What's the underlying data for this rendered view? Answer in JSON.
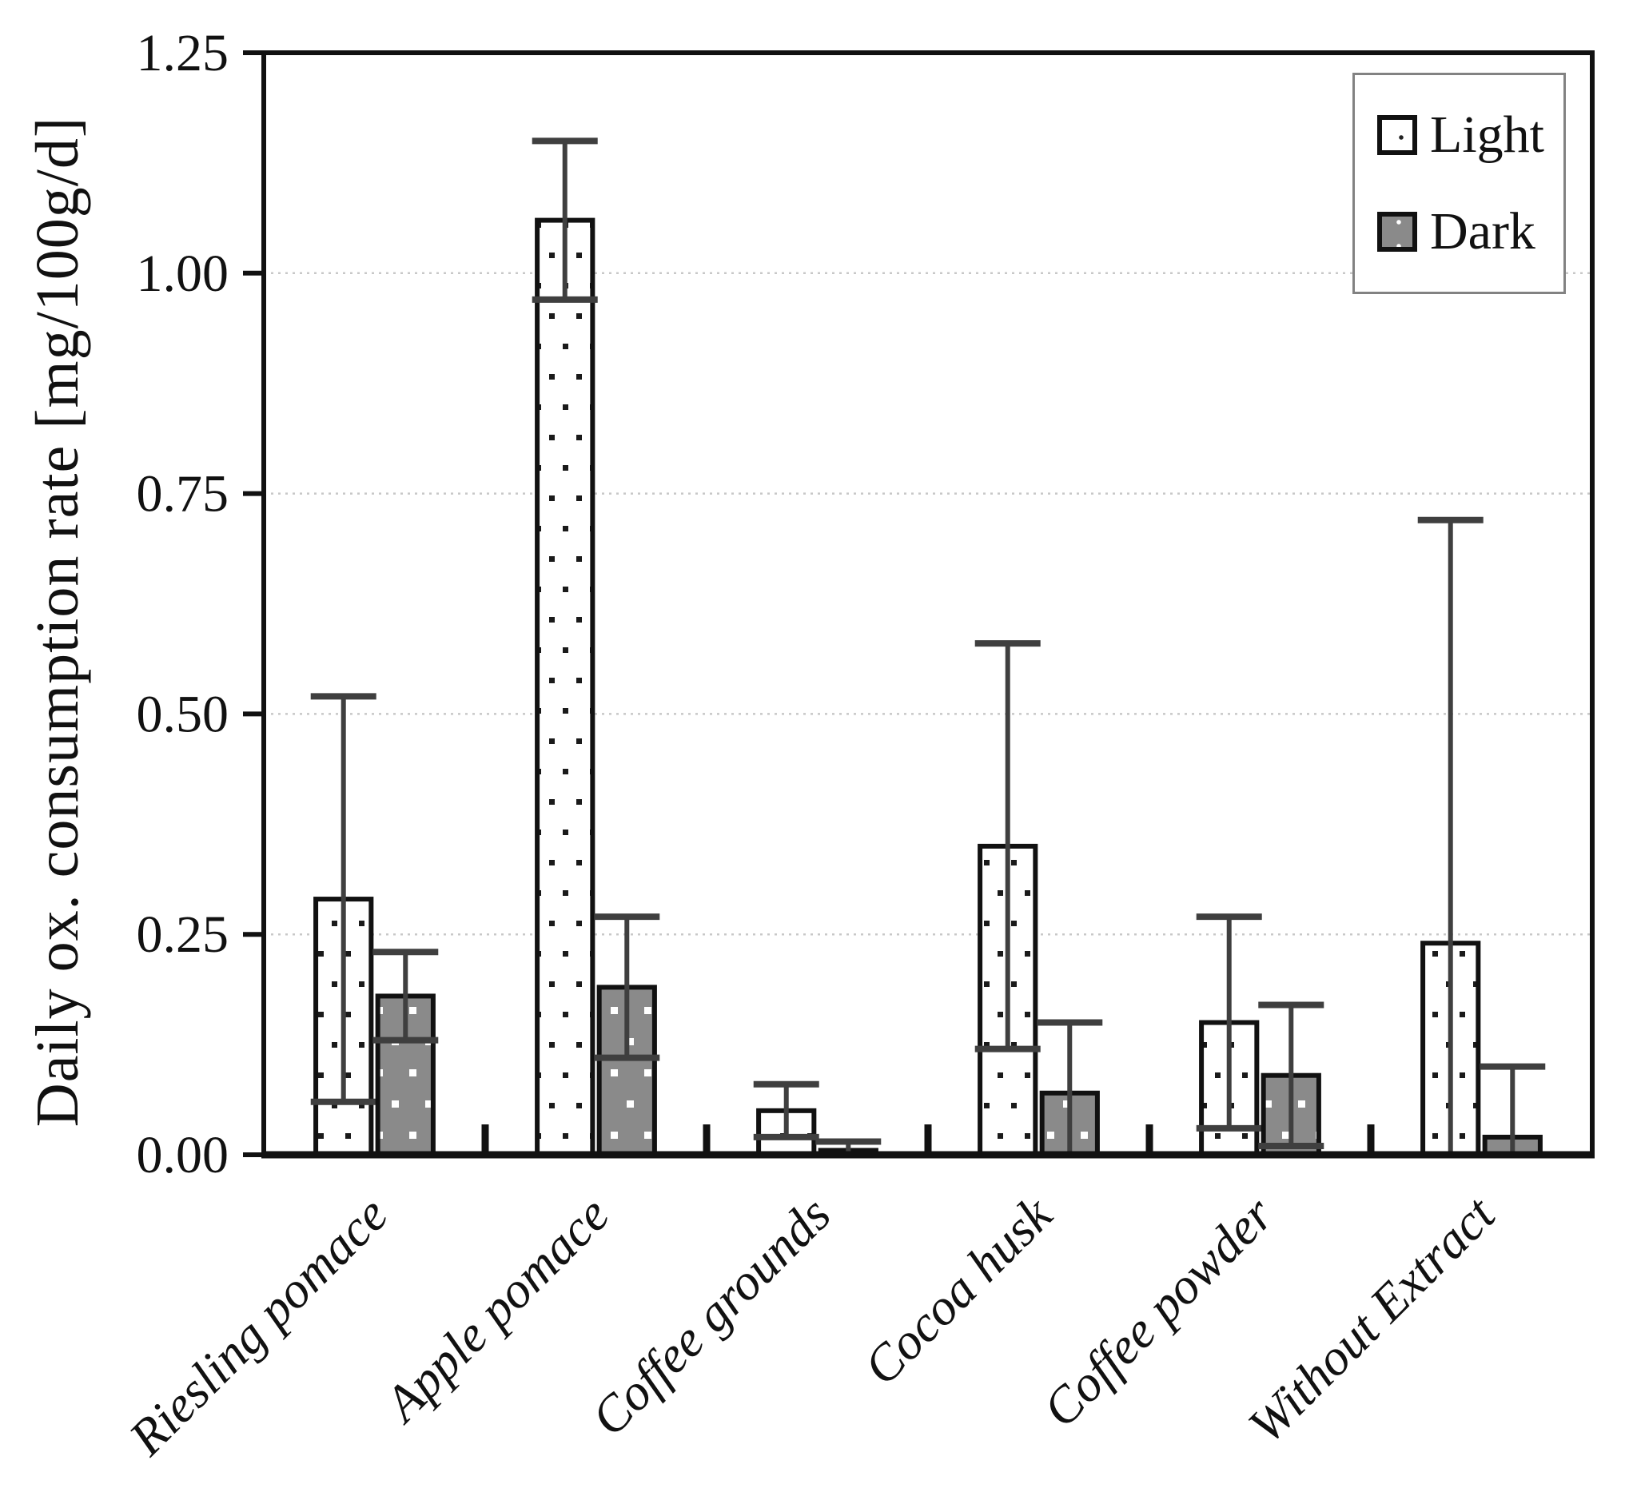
{
  "chart_data": {
    "type": "bar",
    "title": "",
    "xlabel": "",
    "ylabel": "Daily ox. consumption rate [mg/100g/d]",
    "ylim": [
      0,
      1.25
    ],
    "yticks": [
      0,
      0.25,
      0.5,
      0.75,
      1.0,
      1.25
    ],
    "ytick_labels": [
      "0.00",
      "0.25",
      "0.50",
      "0.75",
      "1.00",
      "1.25"
    ],
    "grid": "horizontal-dotted",
    "legend_position": "top-right",
    "categories": [
      "Riesling pomace",
      "Apple pomace",
      "Coffee grounds",
      "Cocoa husk",
      "Coffee powder",
      "Without Extract"
    ],
    "series": [
      {
        "name": "Light",
        "style": "white-with-black-dots",
        "values": [
          0.29,
          1.06,
          0.05,
          0.35,
          0.15,
          0.24
        ],
        "error_low": [
          0.06,
          0.97,
          0.02,
          0.12,
          0.03,
          0.0
        ],
        "error_high": [
          0.52,
          1.15,
          0.08,
          0.58,
          0.27,
          0.72
        ]
      },
      {
        "name": "Dark",
        "style": "gray-with-white-dots",
        "values": [
          0.18,
          0.19,
          0.005,
          0.07,
          0.09,
          0.02
        ],
        "error_low": [
          0.13,
          0.11,
          0.0,
          0.0,
          0.01,
          0.0
        ],
        "error_high": [
          0.23,
          0.27,
          0.015,
          0.15,
          0.17,
          0.1
        ]
      }
    ],
    "colors": {
      "light_fill": "#ffffff",
      "light_dot": "#1a1a1a",
      "dark_fill": "#8a8a8a",
      "dark_dot": "#ffffff",
      "bar_border": "#111111",
      "error_bar": "#3f3f3f",
      "gridline": "#c8c8c8",
      "axis": "#111111",
      "legend_border": "#828282",
      "text": "#111111"
    }
  }
}
